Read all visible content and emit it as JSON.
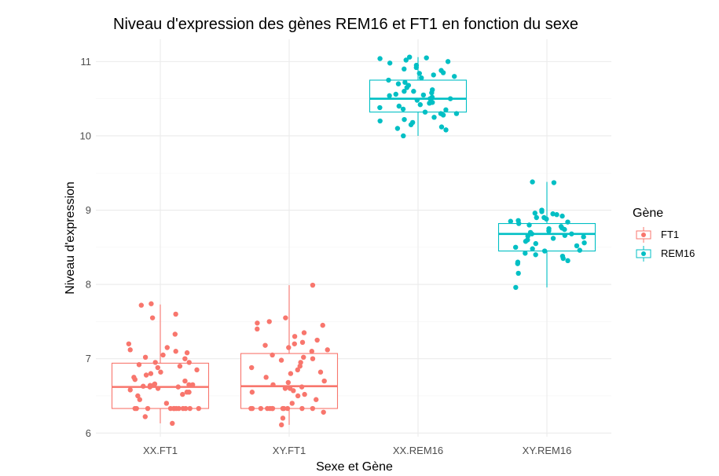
{
  "chart_data": {
    "type": "box",
    "title": "Niveau d'expression des gènes REM16 et FT1 en fonction du sexe",
    "xlabel": "Sexe et Gène",
    "ylabel": "Niveau d'expression",
    "ylim": [
      5.95,
      11.3
    ],
    "yticks": [
      "6",
      "7",
      "8",
      "9",
      "10",
      "11"
    ],
    "grid": true,
    "legend": {
      "title": "Gène",
      "position": "right",
      "entries": [
        {
          "name": "FT1",
          "color": "#F8766D"
        },
        {
          "name": "REM16",
          "color": "#00BFC4"
        }
      ]
    },
    "categories": [
      "XX.FT1",
      "XY.FT1",
      "XX.REM16",
      "XY.REM16"
    ],
    "boxes": [
      {
        "category": "XX.FT1",
        "gene": "FT1",
        "min": 6.13,
        "q1": 6.33,
        "median": 6.62,
        "q3": 6.94,
        "max": 7.73
      },
      {
        "category": "XY.FT1",
        "gene": "FT1",
        "min": 6.11,
        "q1": 6.33,
        "median": 6.63,
        "q3": 7.07,
        "max": 7.99
      },
      {
        "category": "XX.REM16",
        "gene": "REM16",
        "min": 10.0,
        "q1": 10.32,
        "median": 10.5,
        "q3": 10.75,
        "max": 11.06
      },
      {
        "category": "XY.REM16",
        "gene": "REM16",
        "min": 7.96,
        "q1": 8.45,
        "median": 8.68,
        "q3": 8.82,
        "max": 9.38
      }
    ],
    "points": [
      {
        "category": "XX.FT1",
        "values": [
          6.13,
          6.22,
          6.33,
          6.33,
          6.33,
          6.33,
          6.33,
          6.33,
          6.33,
          6.33,
          6.33,
          6.33,
          6.33,
          6.33,
          6.4,
          6.45,
          6.5,
          6.52,
          6.55,
          6.55,
          6.58,
          6.6,
          6.62,
          6.62,
          6.63,
          6.64,
          6.65,
          6.65,
          6.65,
          6.66,
          6.7,
          6.72,
          6.75,
          6.78,
          6.8,
          6.82,
          6.85,
          6.88,
          6.9,
          6.92,
          6.95,
          6.95,
          7.0,
          7.02,
          7.05,
          7.08,
          7.1,
          7.12,
          7.15,
          7.2,
          7.33,
          7.55,
          7.6,
          7.72,
          7.74
        ]
      },
      {
        "category": "XY.FT1",
        "values": [
          6.11,
          6.2,
          6.28,
          6.33,
          6.33,
          6.33,
          6.33,
          6.33,
          6.33,
          6.33,
          6.33,
          6.33,
          6.33,
          6.33,
          6.33,
          6.4,
          6.45,
          6.5,
          6.52,
          6.55,
          6.57,
          6.6,
          6.6,
          6.62,
          6.65,
          6.68,
          6.7,
          6.75,
          6.8,
          6.82,
          6.85,
          6.88,
          6.9,
          6.95,
          6.98,
          7.0,
          7.02,
          7.05,
          7.1,
          7.12,
          7.15,
          7.18,
          7.2,
          7.22,
          7.25,
          7.3,
          7.35,
          7.4,
          7.45,
          7.48,
          7.5,
          7.55,
          7.99
        ]
      },
      {
        "category": "XX.REM16",
        "values": [
          10.0,
          10.08,
          10.1,
          10.12,
          10.15,
          10.18,
          10.2,
          10.22,
          10.25,
          10.28,
          10.3,
          10.3,
          10.32,
          10.35,
          10.36,
          10.38,
          10.4,
          10.42,
          10.44,
          10.45,
          10.46,
          10.48,
          10.5,
          10.5,
          10.52,
          10.54,
          10.55,
          10.56,
          10.58,
          10.6,
          10.6,
          10.62,
          10.65,
          10.68,
          10.7,
          10.72,
          10.75,
          10.78,
          10.8,
          10.82,
          10.84,
          10.85,
          10.88,
          10.9,
          10.92,
          10.95,
          10.98,
          11.0,
          11.02,
          11.04,
          11.05,
          11.06
        ]
      },
      {
        "category": "XY.REM16",
        "values": [
          7.96,
          8.15,
          8.28,
          8.3,
          8.32,
          8.35,
          8.38,
          8.4,
          8.42,
          8.45,
          8.46,
          8.48,
          8.5,
          8.52,
          8.55,
          8.56,
          8.58,
          8.6,
          8.62,
          8.64,
          8.65,
          8.66,
          8.68,
          8.68,
          8.7,
          8.72,
          8.74,
          8.75,
          8.76,
          8.78,
          8.8,
          8.82,
          8.84,
          8.85,
          8.86,
          8.88,
          8.9,
          8.9,
          8.92,
          8.94,
          8.95,
          8.96,
          8.98,
          9.0,
          9.37,
          9.38
        ]
      }
    ]
  }
}
